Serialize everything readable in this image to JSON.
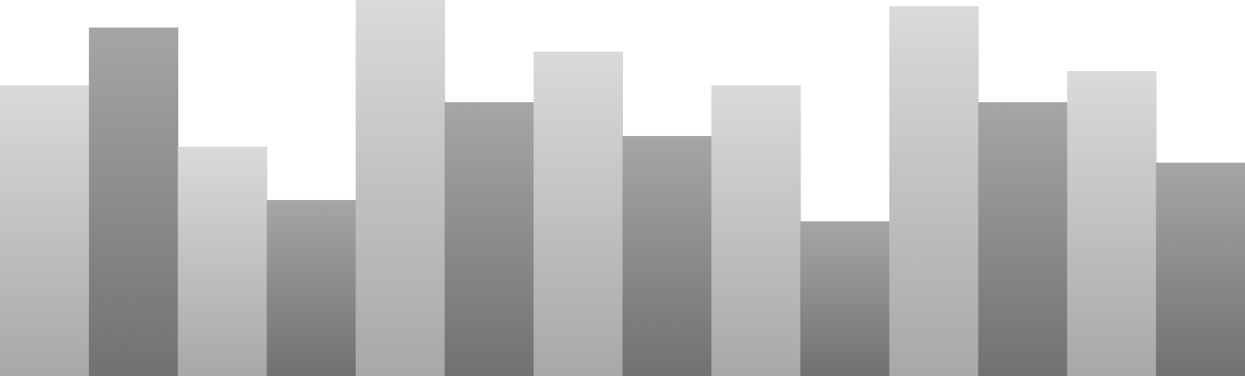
{
  "chart_data": {
    "type": "bar",
    "values": [
      327,
      392,
      258,
      198,
      423,
      308,
      365,
      270,
      327,
      174,
      416,
      308,
      343,
      240
    ],
    "ylim": [
      0,
      423
    ],
    "grid": false,
    "legend": "none",
    "colors": {
      "light_top": "#dadada",
      "light_bottom": "#a8a8a8",
      "dark_top": "#a6a6a6",
      "dark_bottom": "#717171"
    }
  }
}
